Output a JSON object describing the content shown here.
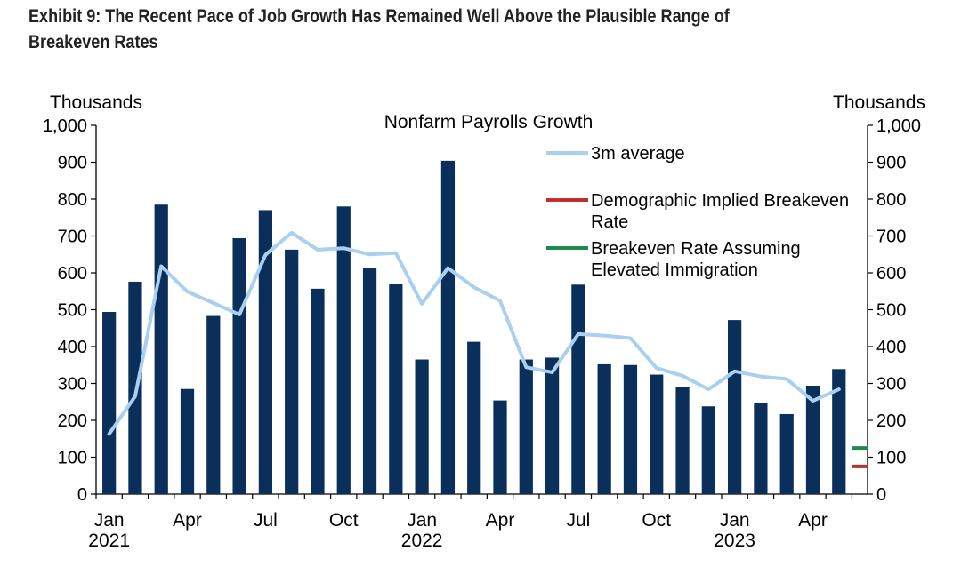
{
  "exhibit_title": "Exhibit 9: The Recent Pace of Job Growth Has Remained Well Above the Plausible Range of Breakeven Rates",
  "chart_data": {
    "type": "bar",
    "title": "Nonfarm Payrolls Growth",
    "ylabel_left": "Thousands",
    "ylabel_right": "Thousands",
    "ylim": [
      0,
      1000
    ],
    "yticks": [
      "0",
      "100",
      "200",
      "300",
      "400",
      "500",
      "600",
      "700",
      "800",
      "900",
      "1,000"
    ],
    "months": [
      "Jan 2021",
      "Feb 2021",
      "Mar 2021",
      "Apr 2021",
      "May 2021",
      "Jun 2021",
      "Jul 2021",
      "Aug 2021",
      "Sep 2021",
      "Oct 2021",
      "Nov 2021",
      "Dec 2021",
      "Jan 2022",
      "Feb 2022",
      "Mar 2022",
      "Apr 2022",
      "May 2022",
      "Jun 2022",
      "Jul 2022",
      "Aug 2022",
      "Sep 2022",
      "Oct 2022",
      "Nov 2022",
      "Dec 2022",
      "Jan 2023",
      "Feb 2023",
      "Mar 2023",
      "Apr 2023",
      "May 2023"
    ],
    "x_tick_labels": [
      {
        "index": 0,
        "month": "Jan",
        "year": "2021"
      },
      {
        "index": 3,
        "month": "Apr",
        "year": ""
      },
      {
        "index": 6,
        "month": "Jul",
        "year": ""
      },
      {
        "index": 9,
        "month": "Oct",
        "year": ""
      },
      {
        "index": 12,
        "month": "Jan",
        "year": "2022"
      },
      {
        "index": 15,
        "month": "Apr",
        "year": ""
      },
      {
        "index": 18,
        "month": "Jul",
        "year": ""
      },
      {
        "index": 21,
        "month": "Oct",
        "year": ""
      },
      {
        "index": 24,
        "month": "Jan",
        "year": "2023"
      },
      {
        "index": 27,
        "month": "Apr",
        "year": ""
      }
    ],
    "series": [
      {
        "name": "Nonfarm Payrolls Growth",
        "kind": "bar",
        "color": "#0b2f5b",
        "values": [
          494,
          576,
          785,
          285,
          483,
          694,
          770,
          663,
          557,
          780,
          612,
          570,
          365,
          904,
          413,
          254,
          365,
          370,
          568,
          352,
          350,
          324,
          290,
          238,
          472,
          248,
          217,
          294,
          339
        ]
      },
      {
        "name": "3m average",
        "kind": "line",
        "color": "#a9d0f0",
        "values": [
          163,
          265,
          618,
          549,
          518,
          487,
          649,
          709,
          663,
          667,
          650,
          654,
          516,
          613,
          561,
          524,
          344,
          330,
          434,
          430,
          423,
          342,
          321,
          284,
          333,
          319,
          312,
          253,
          284
        ]
      },
      {
        "name": "Demographic Implied Breakeven Rate",
        "kind": "marker",
        "color": "#c0302e",
        "value": 75
      },
      {
        "name": "Breakeven Rate Assuming Elevated Immigration",
        "kind": "marker",
        "color": "#1f8a4c",
        "value": 125
      }
    ],
    "legend": [
      {
        "label_lines": [
          "3m average"
        ],
        "color": "#a9d0f0"
      },
      {
        "label_lines": [
          "Demographic Implied Breakeven",
          "Rate"
        ],
        "color": "#c0302e"
      },
      {
        "label_lines": [
          "Breakeven Rate Assuming",
          "Elevated Immigration"
        ],
        "color": "#1f8a4c"
      }
    ]
  }
}
